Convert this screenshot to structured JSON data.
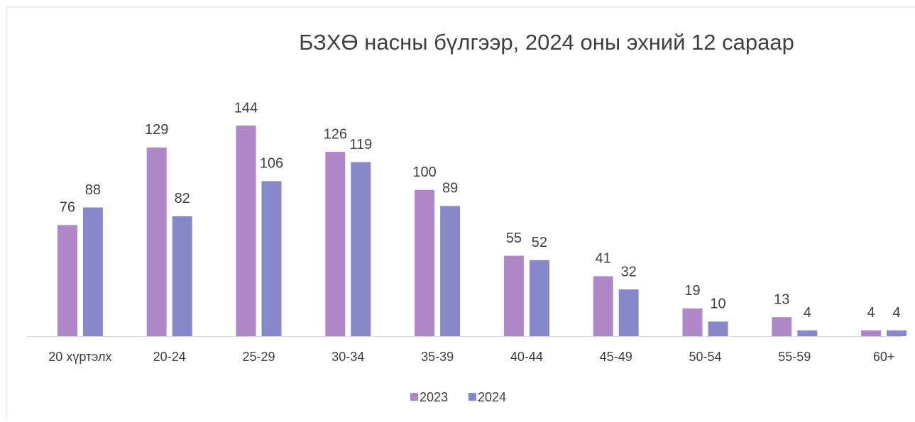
{
  "chart_data": {
    "type": "bar",
    "title": "БЗХӨ насны бүлгээр, 2024 оны эхний 12 сараар",
    "categories": [
      "20 хүртэлх",
      "20-24",
      "25-29",
      "30-34",
      "35-39",
      "40-44",
      "45-49",
      "50-54",
      "55-59",
      "60+"
    ],
    "series": [
      {
        "name": "2023",
        "color": "#af86c8",
        "values": [
          76,
          129,
          144,
          126,
          100,
          55,
          41,
          19,
          13,
          4
        ]
      },
      {
        "name": "2024",
        "color": "#8788c9",
        "values": [
          88,
          82,
          106,
          119,
          89,
          52,
          32,
          10,
          4,
          4
        ]
      }
    ],
    "legend": "bottom"
  }
}
